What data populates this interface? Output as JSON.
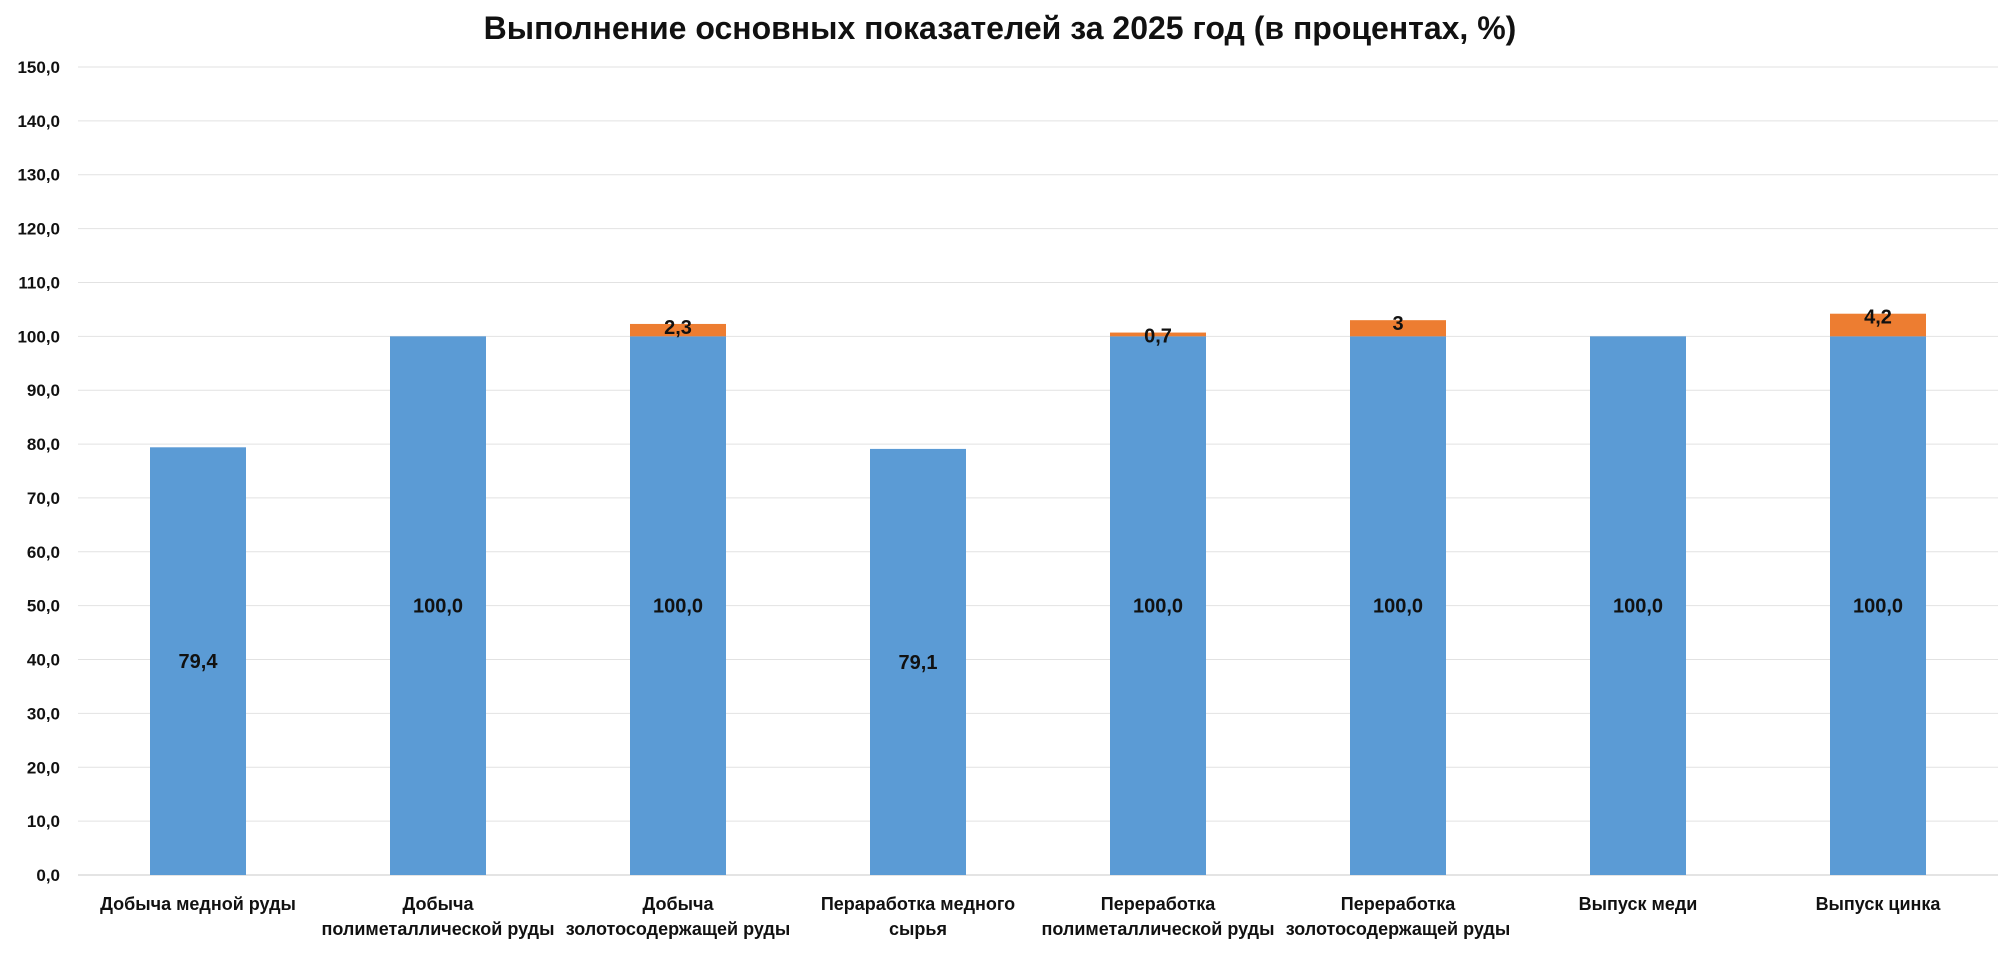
{
  "chart_data": {
    "type": "bar",
    "stacked": true,
    "title": "Выполнение основных показателей за 2025 год (в процентах, %)",
    "categories": [
      [
        "Добыча медной руды"
      ],
      [
        "Добыча",
        "полиметаллической руды"
      ],
      [
        "Добыча",
        "золотосодержащей руды"
      ],
      [
        "Пераработка медного",
        "сырья"
      ],
      [
        "Переработка",
        "полиметаллической руды"
      ],
      [
        "Переработка",
        "золотосодержащей руды"
      ],
      [
        "Выпуск меди"
      ],
      [
        "Выпуск цинка"
      ]
    ],
    "series": [
      {
        "color": "#5B9BD5",
        "values": [
          79.4,
          100.0,
          100.0,
          79.1,
          100.0,
          100.0,
          100.0,
          100.0
        ],
        "labels": [
          "79,4",
          "100,0",
          "100,0",
          "79,1",
          "100,0",
          "100,0",
          "100,0",
          "100,0"
        ]
      },
      {
        "color": "#ED7D31",
        "values": [
          0,
          0,
          2.3,
          0,
          0.7,
          3,
          0,
          4.2
        ],
        "labels": [
          "",
          "",
          "2,3",
          "",
          "0,7",
          "3",
          "",
          "4,2"
        ]
      }
    ],
    "ylim": [
      0,
      150
    ],
    "yticks": [
      0,
      10,
      20,
      30,
      40,
      50,
      60,
      70,
      80,
      90,
      100,
      110,
      120,
      130,
      140,
      150
    ],
    "ytick_labels": [
      "0,0",
      "10,0",
      "20,0",
      "30,0",
      "40,0",
      "50,0",
      "60,0",
      "70,0",
      "80,0",
      "90,0",
      "100,0",
      "110,0",
      "120,0",
      "130,0",
      "140,0",
      "150,0"
    ],
    "grid": true,
    "legend": "none"
  }
}
